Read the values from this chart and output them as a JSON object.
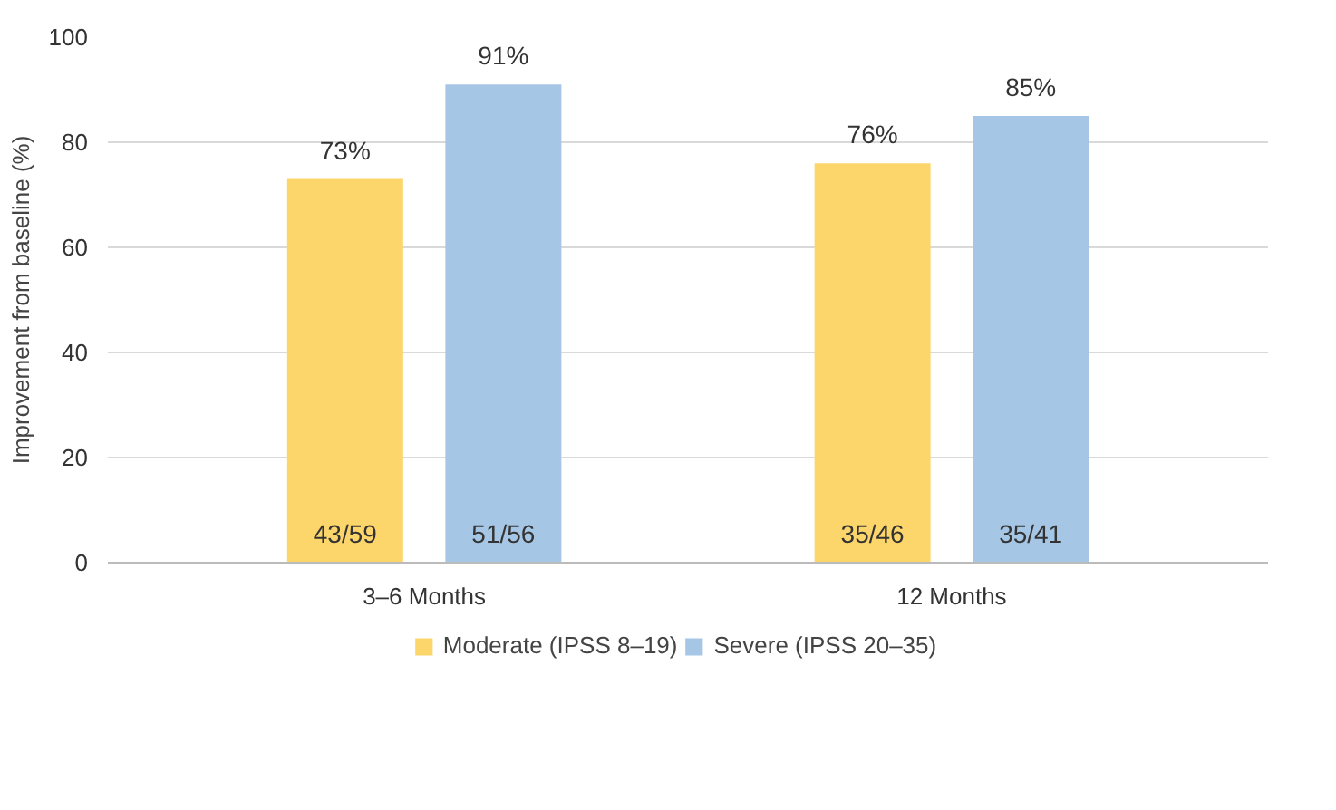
{
  "chart_data": {
    "type": "bar",
    "ylabel": "Improvement from baseline (%)",
    "categories": [
      "3–6 Months",
      "12 Months"
    ],
    "series": [
      {
        "name": "Moderate (IPSS 8–19)",
        "color": "#fdd66b",
        "values": [
          73,
          76
        ],
        "value_labels": [
          "73%",
          "76%"
        ]
      },
      {
        "name": "Severe (IPSS 20–35)",
        "color": "#a6c6e6",
        "values": [
          91,
          85
        ],
        "value_labels": [
          "91%",
          "85%"
        ]
      }
    ],
    "annotations": [
      "43/59",
      "51/56",
      "35/46",
      "35/41"
    ],
    "ylim": [
      0,
      100
    ],
    "yticks": [
      0,
      20,
      40,
      60,
      80,
      100
    ],
    "grid": "y",
    "legend": "bottom"
  }
}
